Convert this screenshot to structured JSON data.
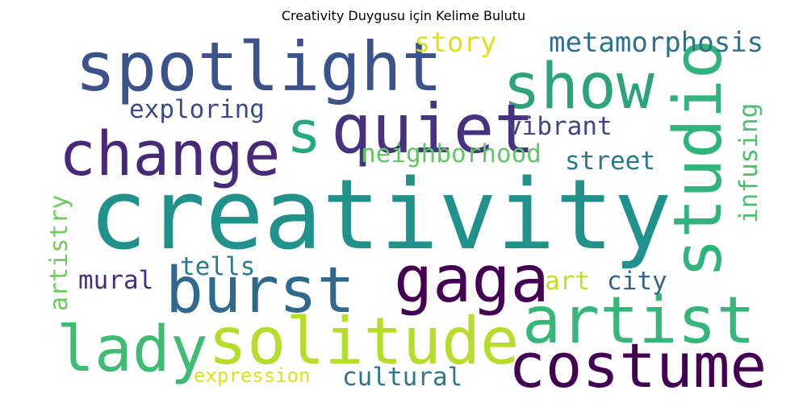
{
  "chart_data": {
    "type": "wordcloud",
    "title": "Creativity Duygusu için Kelime Bulutu",
    "words": [
      {
        "text": "creativity",
        "color": "#21918c"
      },
      {
        "text": "spotlight",
        "color": "#3b528b"
      },
      {
        "text": "show",
        "color": "#2ca37f"
      },
      {
        "text": "quiet",
        "color": "#46327e"
      },
      {
        "text": "change",
        "color": "#482878"
      },
      {
        "text": "s",
        "color": "#22a884"
      },
      {
        "text": "studio",
        "color": "#2fb47c"
      },
      {
        "text": "burst",
        "color": "#31688e"
      },
      {
        "text": "gaga",
        "color": "#440154"
      },
      {
        "text": "artist",
        "color": "#35b779"
      },
      {
        "text": "lady",
        "color": "#3fbc73"
      },
      {
        "text": "solitude",
        "color": "#b5de2b"
      },
      {
        "text": "costume",
        "color": "#440154"
      },
      {
        "text": "metamorphosis",
        "color": "#2c728e"
      },
      {
        "text": "story",
        "color": "#dde318"
      },
      {
        "text": "exploring",
        "color": "#3e4989"
      },
      {
        "text": "vibrant",
        "color": "#414487"
      },
      {
        "text": "neighborhood",
        "color": "#5ec962"
      },
      {
        "text": "street",
        "color": "#2a788e"
      },
      {
        "text": "infusing",
        "color": "#4ac16d"
      },
      {
        "text": "artistry",
        "color": "#6ccd5a"
      },
      {
        "text": "tells",
        "color": "#287c8e"
      },
      {
        "text": "mural",
        "color": "#472d7b"
      },
      {
        "text": "art",
        "color": "#c2df23"
      },
      {
        "text": "city",
        "color": "#33638d"
      },
      {
        "text": "expression",
        "color": "#dde318"
      },
      {
        "text": "cultural",
        "color": "#2a788e"
      }
    ]
  }
}
